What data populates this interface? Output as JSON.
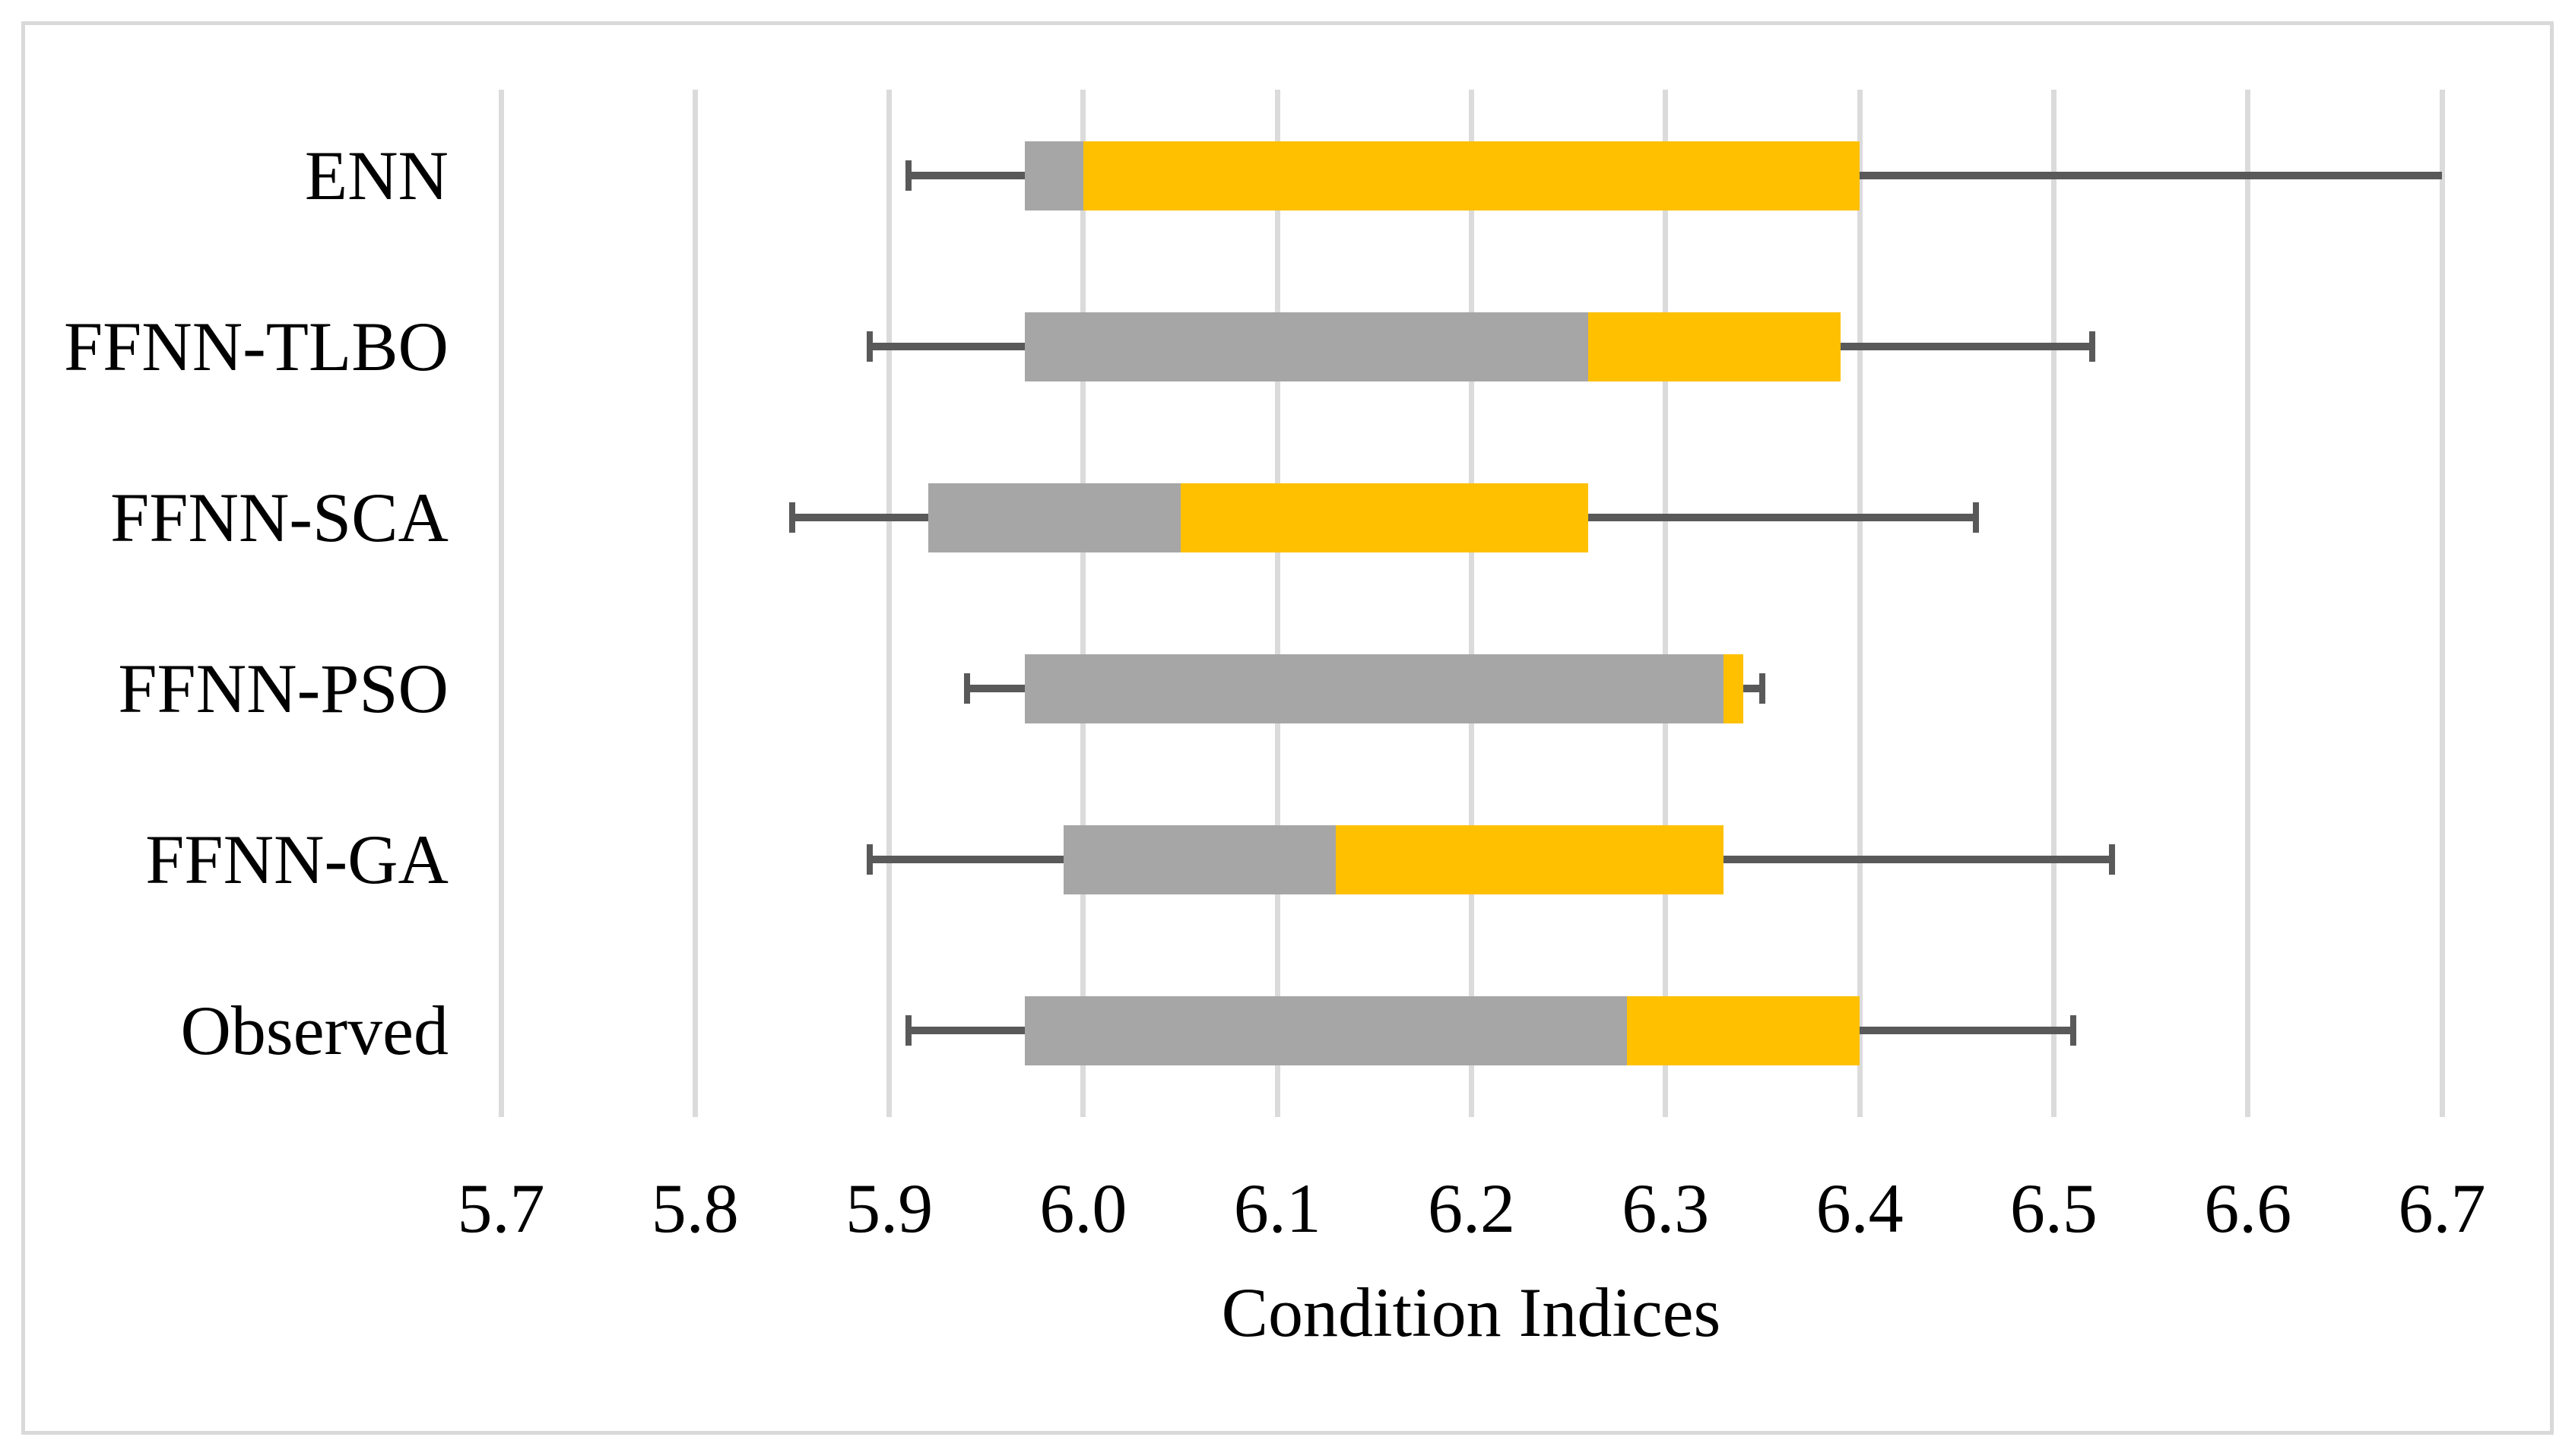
{
  "chart_data": {
    "type": "box",
    "orientation": "horizontal",
    "title": "",
    "xlabel": "Condition Indices",
    "ylabel": "",
    "axis": {
      "min": 5.7,
      "max": 6.7,
      "tick_step": 0.1
    },
    "tick_labels": [
      "5.7",
      "5.8",
      "5.9",
      "6.0",
      "6.1",
      "6.2",
      "6.3",
      "6.4",
      "6.5",
      "6.6",
      "6.7"
    ],
    "grid": true,
    "legend": "none",
    "categories": [
      "ENN",
      "FFNN-TLBO",
      "FFNN-SCA",
      "FFNN-PSO",
      "FFNN-GA",
      "Observed"
    ],
    "series": [
      {
        "name": "ENN",
        "min": 5.91,
        "q1": 5.97,
        "median": 6.0,
        "q3": 6.4,
        "max": 6.7,
        "max_cap_visible": false
      },
      {
        "name": "FFNN-TLBO",
        "min": 5.89,
        "q1": 5.97,
        "median": 6.26,
        "q3": 6.39,
        "max": 6.52,
        "max_cap_visible": true
      },
      {
        "name": "FFNN-SCA",
        "min": 5.85,
        "q1": 5.92,
        "median": 6.05,
        "q3": 6.26,
        "max": 6.46,
        "max_cap_visible": true
      },
      {
        "name": "FFNN-PSO",
        "min": 5.94,
        "q1": 5.97,
        "median": 6.33,
        "q3": 6.34,
        "max": 6.35,
        "max_cap_visible": true
      },
      {
        "name": "FFNN-GA",
        "min": 5.89,
        "q1": 5.99,
        "median": 6.13,
        "q3": 6.33,
        "max": 6.53,
        "max_cap_visible": true
      },
      {
        "name": "Observed",
        "min": 5.91,
        "q1": 5.97,
        "median": 6.28,
        "q3": 6.4,
        "max": 6.51,
        "max_cap_visible": true
      }
    ],
    "colors": {
      "lower_box": "#a6a6a6",
      "upper_box": "#ffc000",
      "whisker": "#595959",
      "gridline": "#dbdbdb",
      "frame_border": "#d9d9d9",
      "text": "#000000",
      "background": "#ffffff"
    }
  }
}
